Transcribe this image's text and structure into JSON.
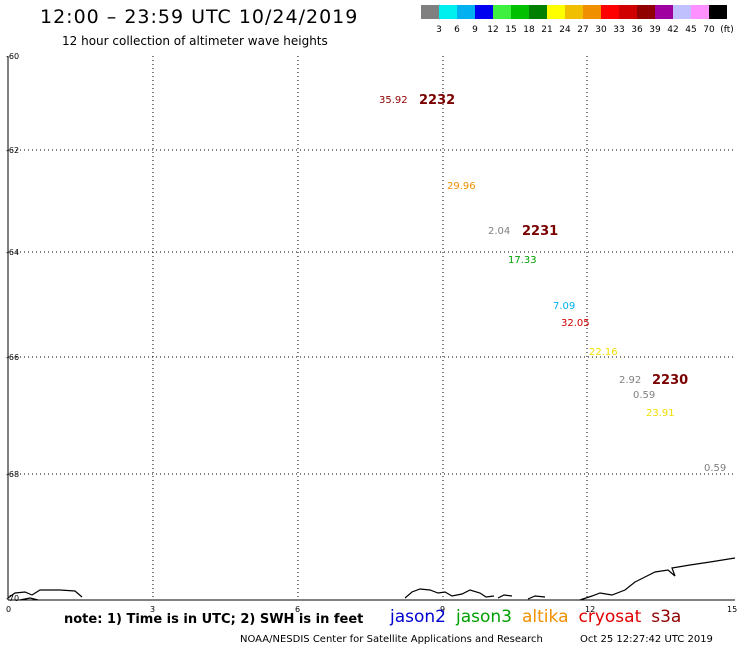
{
  "header": {
    "title": "12:00 – 23:59 UTC 10/24/2019",
    "subtitle": "12 hour collection of altimeter wave heights"
  },
  "legend": {
    "colors": [
      "#808080",
      "#00f0f0",
      "#00b0f0",
      "#0000f0",
      "#40f040",
      "#00c000",
      "#008000",
      "#ffff00",
      "#f0c000",
      "#f09000",
      "#ff0000",
      "#d00000",
      "#900000",
      "#a000a0",
      "#c0c0ff",
      "#ff90ff",
      "#000000"
    ],
    "labels": [
      "3",
      "6",
      "9",
      "12",
      "15",
      "18",
      "21",
      "24",
      "27",
      "30",
      "33",
      "36",
      "39",
      "42",
      "45",
      "70",
      "(ft)"
    ]
  },
  "map": {
    "lon_ticks": [
      "0",
      "3",
      "6",
      "9",
      "12",
      "15"
    ],
    "lat_ticks": [
      "-60",
      "-62",
      "-64",
      "-66",
      "-68",
      "-70"
    ],
    "observations": [
      {
        "value": "35.92",
        "color": "#900000"
      },
      {
        "value": "29.96",
        "color": "#f09000"
      },
      {
        "value": "2.04",
        "color": "#808080"
      },
      {
        "value": "17.33",
        "color": "#00a000"
      },
      {
        "value": "7.09",
        "color": "#00b0f0"
      },
      {
        "value": "32.05",
        "color": "#d00000"
      },
      {
        "value": "22.16",
        "color": "#f0e000"
      },
      {
        "value": "2.92",
        "color": "#808080"
      },
      {
        "value": "0.59",
        "color": "#808080"
      },
      {
        "value": "23.91",
        "color": "#f0e000"
      },
      {
        "value": "0.59",
        "color": "#808080"
      }
    ],
    "passes": [
      "2232",
      "2231",
      "2230"
    ]
  },
  "footer": {
    "note": "note: 1) Time is in UTC; 2) SWH is in feet",
    "satellites": [
      {
        "name": "jason2",
        "color": "#0000d0"
      },
      {
        "name": "jason3",
        "color": "#00a000"
      },
      {
        "name": "altika",
        "color": "#f09000"
      },
      {
        "name": "cryosat",
        "color": "#e00000"
      },
      {
        "name": "s3a",
        "color": "#900000"
      }
    ],
    "credit": "NOAA/NESDIS Center for Satellite Applications and Research",
    "timestamp": "Oct 25 12:27:42 UTC 2019"
  }
}
